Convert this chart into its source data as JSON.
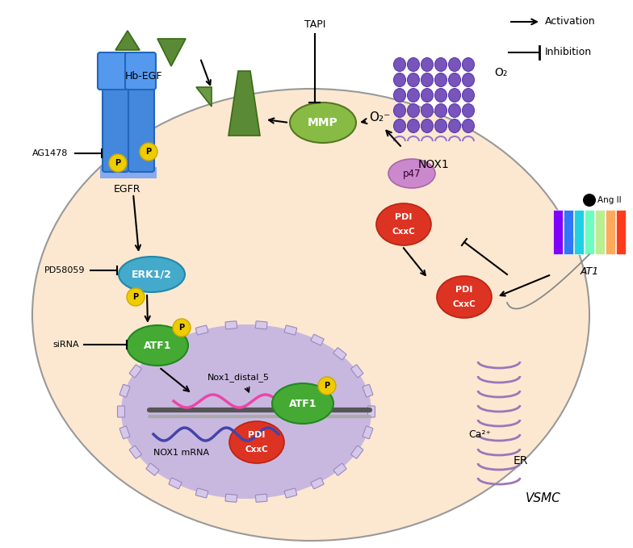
{
  "bg_color": "#fce8d0",
  "cell_color": "#f5dfc0",
  "nucleus_color": "#c8b8e0",
  "white_bg": "#ffffff",
  "activation_text": "Activation",
  "inhibition_text": "Inhibition",
  "VSMC_text": "VSMC",
  "NOX1_text": "NOX1",
  "EGFR_text": "EGFR",
  "ERK_text": "ERK1/2",
  "ATF1_text": "ATF1",
  "MMP_text": "MMP",
  "HbEGF_text": "Hb-EGF",
  "p47_text": "p47",
  "O2_text": "O₂",
  "O2minus_text": "O₂⁻",
  "TAPI_text": "TAPI",
  "AG1478_text": "AG1478",
  "PD58059_text": "PD58059",
  "siRNA_text": "siRNA",
  "AngII_text": "Ang II",
  "AT1_text": "AT1",
  "ER_text": "ER",
  "Ca2plus_text": "Ca²⁺",
  "Nox1_distal_text": "Nox1_distal_5",
  "NOX1_mRNA_text": "NOX1 mRNA",
  "P_text": "P",
  "green_dark": "#4a7a30",
  "lilac_color": "#aa88cc",
  "purple_helix": "#7755bb",
  "purple_helix_edge": "#5533aa"
}
